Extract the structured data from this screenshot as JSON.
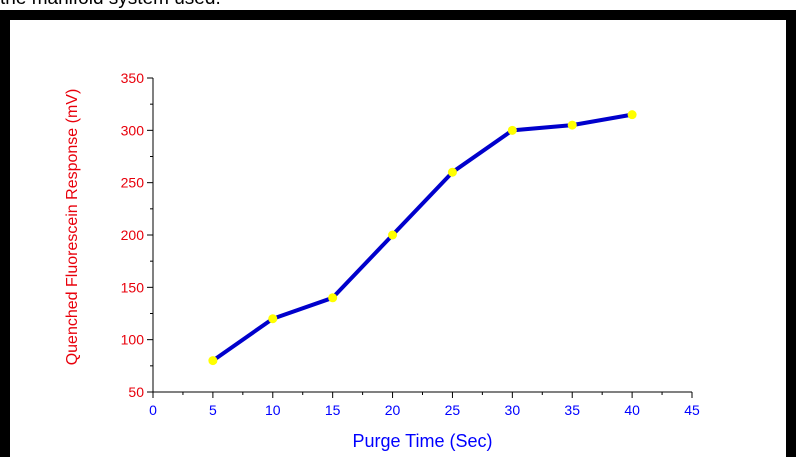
{
  "caption": "the manifold system used.",
  "colors": {
    "frame": "#000000",
    "axis": "#000000",
    "y_text": "#e8000b",
    "x_text": "#0000ff",
    "line": "#0000cc",
    "marker": "#ffff00"
  },
  "chart_data": {
    "type": "line",
    "title": "",
    "xlabel": "Purge Time (Sec)",
    "ylabel": "Quenched Fluorescein Response (mV)",
    "xlim": [
      0,
      45
    ],
    "ylim": [
      50,
      350
    ],
    "x_ticks": [
      "0",
      "5",
      "10",
      "15",
      "20",
      "25",
      "30",
      "35",
      "40",
      "45"
    ],
    "y_ticks": [
      "50",
      "100",
      "150",
      "200",
      "250",
      "300",
      "350"
    ],
    "grid": false,
    "series": [
      {
        "x": [
          5,
          10,
          15,
          20,
          25,
          30,
          35,
          40
        ],
        "values": [
          80,
          120,
          140,
          200,
          260,
          300,
          305,
          315
        ]
      }
    ]
  }
}
